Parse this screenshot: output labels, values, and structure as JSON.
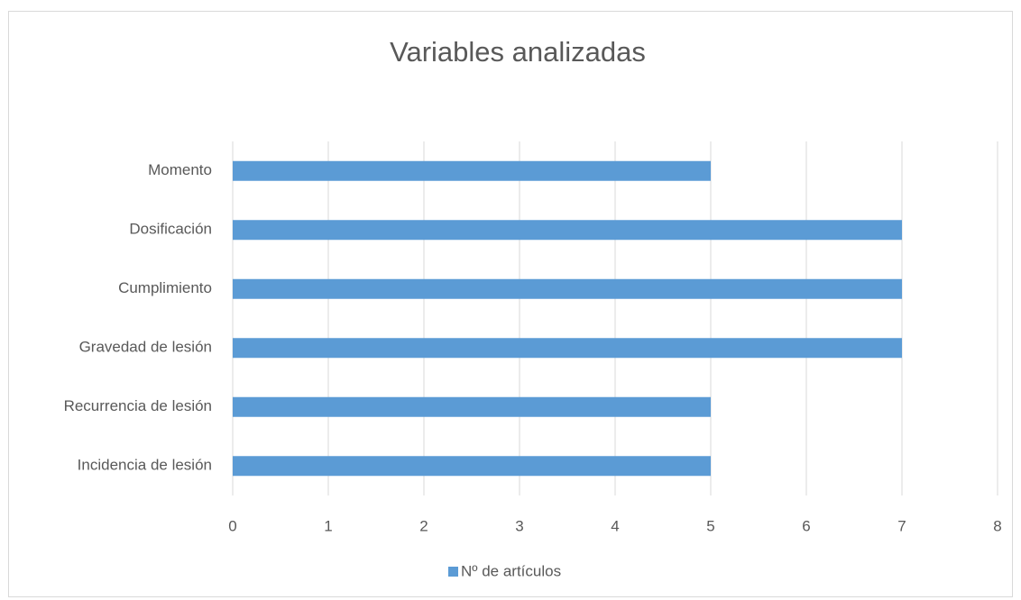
{
  "chart_data": {
    "type": "bar",
    "orientation": "horizontal",
    "title": "Variables analizadas",
    "categories": [
      "Momento",
      "Dosificación",
      "Cumplimiento",
      "Gravedad de lesión",
      "Recurrencia de lesión",
      "Incidencia de lesión"
    ],
    "series": [
      {
        "name": "Nº de artículos",
        "color": "#5b9bd5",
        "values": [
          5,
          7,
          7,
          7,
          5,
          5
        ]
      }
    ],
    "xlim": [
      0,
      8
    ],
    "xticks": [
      0,
      1,
      2,
      3,
      4,
      5,
      6,
      7,
      8
    ],
    "grid": true,
    "legend": "bottom"
  }
}
